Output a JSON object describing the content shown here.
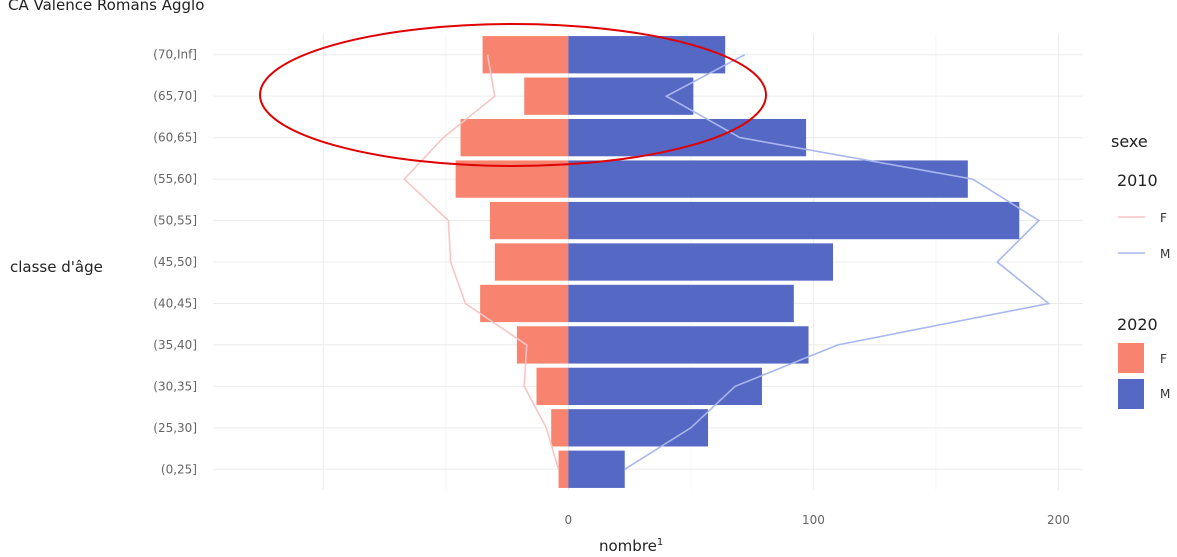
{
  "chart_data": {
    "type": "bar",
    "title": "CA Valence Romans Agglo",
    "xlabel": "nombre",
    "xlabel_sup": "1",
    "ylabel": "classe d'âge",
    "xlim": [
      -145,
      210
    ],
    "x_ticks": [
      0,
      100,
      200
    ],
    "categories": [
      "(0,25]",
      "(25,30]",
      "(30,35]",
      "(35,40]",
      "(40,45]",
      "(45,50]",
      "(50,55]",
      "(55,60]",
      "(60,65]",
      "(65,70]",
      "(70,Inf]"
    ],
    "bars": {
      "group": "2020",
      "series": [
        {
          "name": "F",
          "color": "#F8846F",
          "values": [
            -4,
            -7,
            -13,
            -21,
            -36,
            -30,
            -32,
            -46,
            -44,
            -18,
            -35
          ]
        },
        {
          "name": "M",
          "color": "#5468C4",
          "values": [
            23,
            57,
            79,
            98,
            92,
            108,
            184,
            163,
            97,
            51,
            64
          ]
        }
      ]
    },
    "lines": {
      "group": "2010",
      "series": [
        {
          "name": "F",
          "color": "#F7C6C4",
          "values": [
            -4,
            -9,
            -18,
            -17,
            -42,
            -48,
            -49,
            -67,
            -51,
            -30,
            -33
          ]
        },
        {
          "name": "M",
          "color": "#A9B7EE",
          "values": [
            23,
            50,
            68,
            110,
            196,
            175,
            192,
            165,
            70,
            40,
            72
          ]
        }
      ]
    },
    "legend": {
      "title": "sexe",
      "position": "right",
      "groups": [
        {
          "title": "2010",
          "kind": "line",
          "items": [
            "F",
            "M"
          ]
        },
        {
          "title": "2020",
          "kind": "fill",
          "items": [
            "F",
            "M"
          ]
        }
      ]
    },
    "grid": true,
    "annotation": {
      "type": "ellipse",
      "color": "#E00000",
      "around": [
        "(65,70]",
        "(70,Inf]"
      ]
    }
  }
}
